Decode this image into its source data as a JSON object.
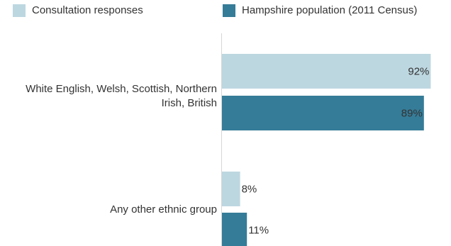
{
  "colors": {
    "consultation": "#bdd7e0",
    "population": "#357c98",
    "axis": "#d6d6d6"
  },
  "chart_data": {
    "type": "bar",
    "orientation": "horizontal",
    "categories": [
      "White English, Welsh, Scottish, Northern Irish, British",
      "Any other ethnic group"
    ],
    "category_label_lines": [
      [
        "White English, Welsh, Scottish, Northern",
        "Irish, British"
      ],
      [
        "Any other ethnic group"
      ]
    ],
    "series": [
      {
        "name": "Consultation responses",
        "values": [
          92,
          8
        ],
        "color": "#bdd7e0"
      },
      {
        "name": "Hampshire population (2011 Census)",
        "values": [
          89,
          11
        ],
        "color": "#357c98"
      }
    ],
    "value_suffix": "%",
    "xlim": [
      0,
      100
    ],
    "grid": false,
    "legend": "top"
  }
}
